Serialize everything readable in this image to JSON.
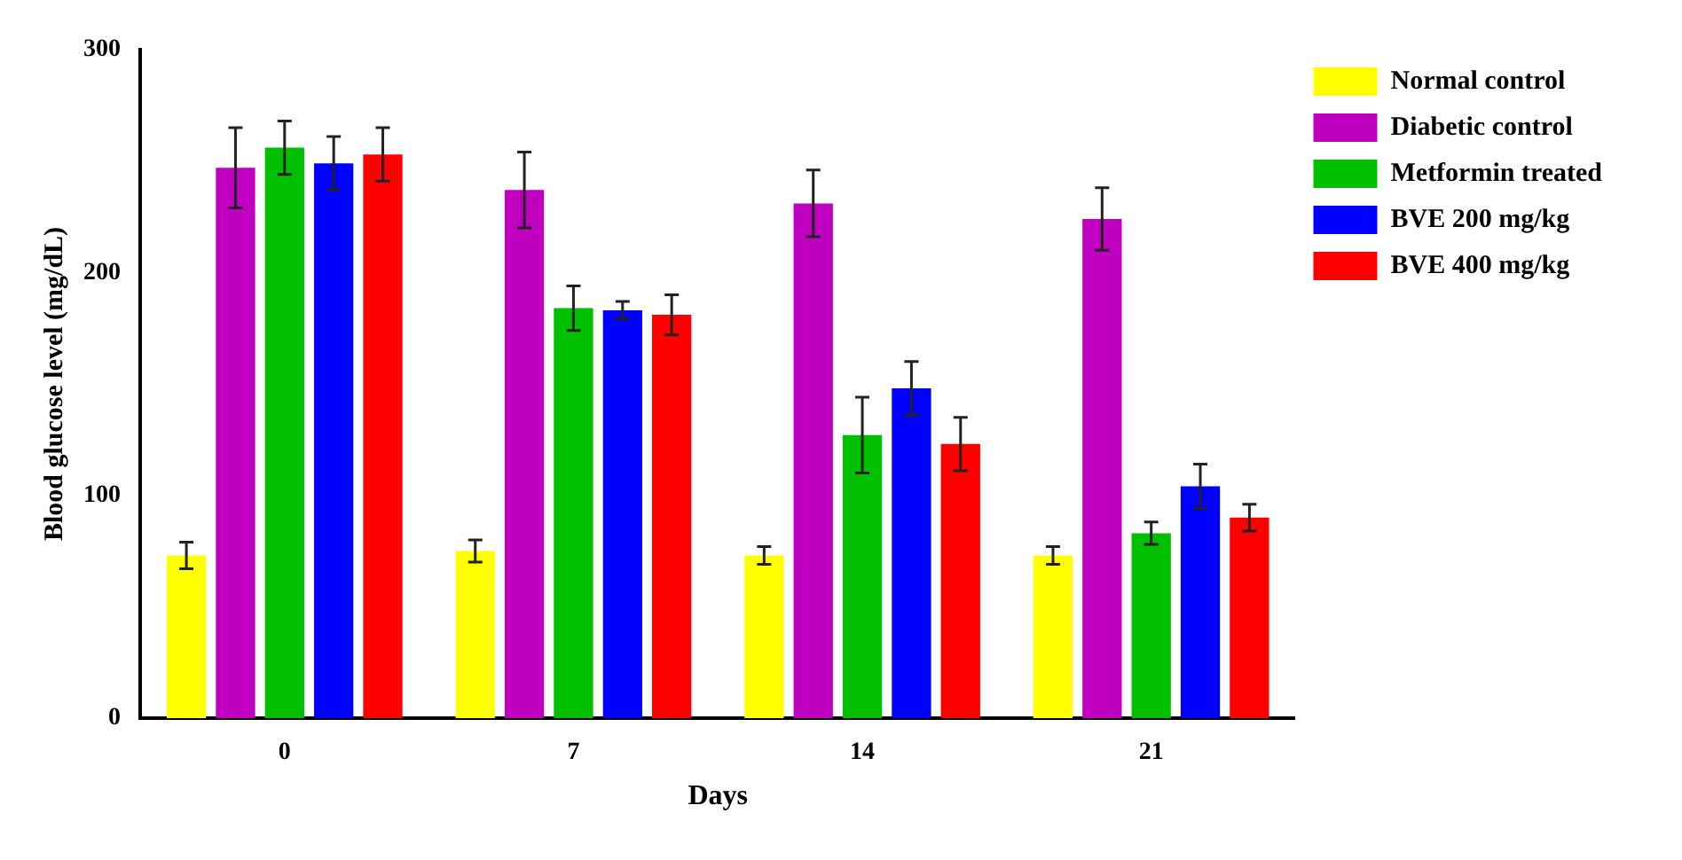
{
  "chart_data": {
    "type": "bar",
    "xlabel": "Days",
    "ylabel": "Blood glucose level (mg/dL)",
    "categories": [
      "0",
      "7",
      "14",
      "21"
    ],
    "ylim": [
      0,
      300
    ],
    "yticks": [
      0,
      100,
      200,
      300
    ],
    "grid": false,
    "legend": "right",
    "series": [
      {
        "name": "Normal control",
        "color": "#ffff00",
        "values": [
          73,
          75,
          73,
          73
        ],
        "errors": [
          6,
          5,
          4,
          4
        ]
      },
      {
        "name": "Diabetic control",
        "color": "#c000c0",
        "values": [
          247,
          237,
          231,
          224
        ],
        "errors": [
          18,
          17,
          15,
          14
        ]
      },
      {
        "name": "Metformin treated",
        "color": "#00c000",
        "values": [
          256,
          184,
          127,
          83
        ],
        "errors": [
          12,
          10,
          17,
          5
        ]
      },
      {
        "name": "BVE 200 mg/kg",
        "color": "#0000ff",
        "values": [
          249,
          183,
          148,
          104
        ],
        "errors": [
          12,
          4,
          12,
          10
        ]
      },
      {
        "name": "BVE 400 mg/kg",
        "color": "#ff0000",
        "values": [
          253,
          181,
          123,
          90
        ],
        "errors": [
          12,
          9,
          12,
          6
        ]
      }
    ]
  }
}
